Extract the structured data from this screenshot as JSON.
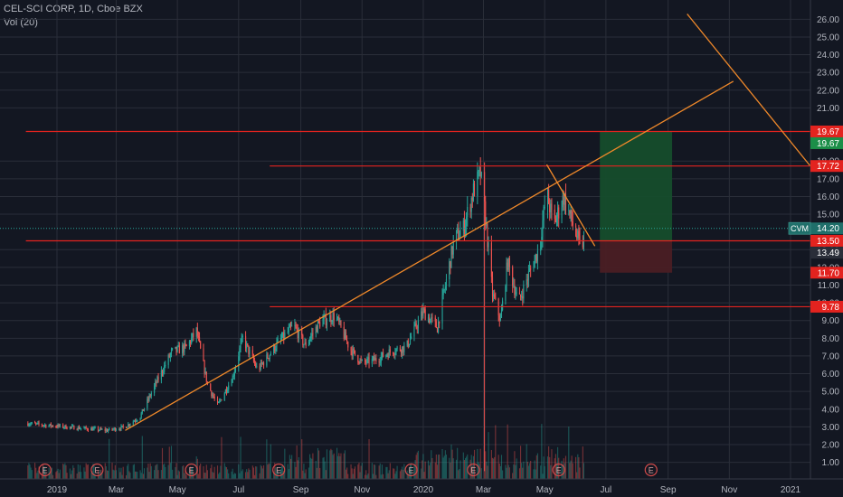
{
  "legend": {
    "title": "CEL-SCI CORP, 1D, Cboe BZX",
    "volume": "Vol (20)"
  },
  "colors": {
    "background": "#131722",
    "grid": "#2a2e39",
    "axis_text": "#b2b5be",
    "up": "#26a69a",
    "down": "#ef5350",
    "level_line": "#e3231f",
    "trendline": "#f0892a",
    "target_zone": "#154d2c",
    "stop_zone": "#4a1d24",
    "target_label": "#1b8e48",
    "price_label": "#1f6f6a"
  },
  "chart_data": {
    "type": "candlestick",
    "title": "CEL-SCI CORP, 1D, Cboe BZX",
    "ylim": [
      0,
      26
    ],
    "y_ticks": [
      "1.00",
      "2.00",
      "3.00",
      "4.00",
      "5.00",
      "6.00",
      "7.00",
      "8.00",
      "9.00",
      "10.00",
      "11.00",
      "12.00",
      "13.00",
      "15.00",
      "16.00",
      "17.00",
      "18.00",
      "21.00",
      "22.00",
      "23.00",
      "24.00",
      "25.00",
      "26.00"
    ],
    "x_ticks": [
      "2019",
      "Mar",
      "May",
      "Jul",
      "Sep",
      "Nov",
      "2020",
      "Mar",
      "May",
      "Jul",
      "Sep",
      "Nov",
      "2021"
    ],
    "grid": true,
    "price_path": [
      [
        "2018-12-01",
        3.2
      ],
      [
        "2018-12-20",
        3.1
      ],
      [
        "2019-01-10",
        3.0
      ],
      [
        "2019-01-31",
        2.9
      ],
      [
        "2019-02-20",
        2.8
      ],
      [
        "2019-03-10",
        3.0
      ],
      [
        "2019-03-25",
        3.6
      ],
      [
        "2019-04-10",
        5.5
      ],
      [
        "2019-04-25",
        7.2
      ],
      [
        "2019-05-10",
        7.5
      ],
      [
        "2019-05-20",
        8.4
      ],
      [
        "2019-05-31",
        5.4
      ],
      [
        "2019-06-10",
        4.2
      ],
      [
        "2019-06-25",
        5.8
      ],
      [
        "2019-07-05",
        8.0
      ],
      [
        "2019-07-20",
        6.2
      ],
      [
        "2019-08-10",
        7.8
      ],
      [
        "2019-08-25",
        8.7
      ],
      [
        "2019-09-05",
        7.6
      ],
      [
        "2019-09-20",
        8.9
      ],
      [
        "2019-10-05",
        9.3
      ],
      [
        "2019-10-20",
        7.4
      ],
      [
        "2019-11-01",
        6.6
      ],
      [
        "2019-11-15",
        6.8
      ],
      [
        "2019-12-01",
        7.3
      ],
      [
        "2019-12-15",
        7.5
      ],
      [
        "2020-01-01",
        9.5
      ],
      [
        "2020-01-15",
        8.6
      ],
      [
        "2020-02-01",
        13.6
      ],
      [
        "2020-02-10",
        14.2
      ],
      [
        "2020-02-20",
        16.3
      ],
      [
        "2020-02-27",
        17.3
      ],
      [
        "2020-03-03",
        14.8
      ],
      [
        "2020-03-10",
        10.5
      ],
      [
        "2020-03-18",
        9.0
      ],
      [
        "2020-03-25",
        12.3
      ],
      [
        "2020-04-05",
        10.0
      ],
      [
        "2020-04-15",
        11.6
      ],
      [
        "2020-04-25",
        13.0
      ],
      [
        "2020-05-03",
        16.2
      ],
      [
        "2020-05-10",
        14.4
      ],
      [
        "2020-05-20",
        16.0
      ],
      [
        "2020-05-28",
        14.6
      ],
      [
        "2020-06-05",
        13.2
      ],
      [
        "2020-06-10",
        13.5
      ]
    ],
    "spike_low": {
      "date": "2020-03-01",
      "low": 0.5
    },
    "horizontal_levels": [
      {
        "price": 19.67,
        "label": "19.67",
        "start": "2018-12-01"
      },
      {
        "price": 17.72,
        "label": "17.72",
        "start": "2019-08-01"
      },
      {
        "price": 13.5,
        "label": "13.50",
        "start": "2018-12-01"
      },
      {
        "price": 9.78,
        "label": "9.78",
        "start": "2019-08-01"
      }
    ],
    "trendlines": [
      {
        "from": [
          "2019-03-10",
          2.8
        ],
        "to": [
          "2020-11-05",
          22.5
        ]
      },
      {
        "from": [
          "2020-05-03",
          17.8
        ],
        "to": [
          "2020-06-20",
          13.2
        ]
      },
      {
        "from": [
          "2020-09-20",
          26.3
        ],
        "to": [
          "2021-02-10",
          16.3
        ]
      }
    ],
    "position_tool": {
      "start": "2020-06-25",
      "end": "2020-09-05",
      "entry": 13.5,
      "target": 19.67,
      "stop": 11.7
    },
    "price_labels": [
      {
        "price": 19.67,
        "text": "19.67",
        "kind": "level"
      },
      {
        "price": 19.67,
        "text": "19.67",
        "kind": "target"
      },
      {
        "price": 17.72,
        "text": "17.72",
        "kind": "level"
      },
      {
        "price": 14.2,
        "text": "14.20",
        "kind": "current"
      },
      {
        "price": 13.5,
        "text": "13.50",
        "kind": "level"
      },
      {
        "price": 13.49,
        "text": "13.49",
        "kind": "gray"
      },
      {
        "price": 11.7,
        "text": "11.70",
        "kind": "stop"
      },
      {
        "price": 9.78,
        "text": "9.78",
        "kind": "level"
      }
    ],
    "symbol_tag": "CVM",
    "earnings_markers": {
      "label": "E",
      "dates": [
        "2018-12-20",
        "2019-02-10",
        "2019-05-15",
        "2019-08-10",
        "2019-12-20",
        "2020-02-20",
        "2020-05-15",
        "2020-08-15"
      ]
    },
    "volume_series_name": "Vol (20)"
  }
}
